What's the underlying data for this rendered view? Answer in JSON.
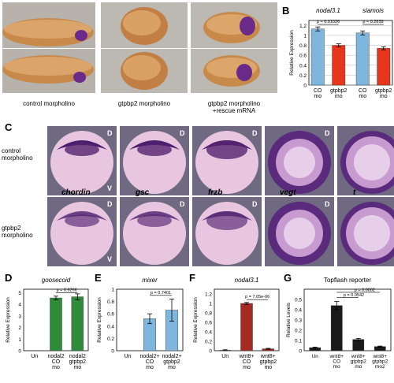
{
  "panels": {
    "A": "A",
    "B": "B",
    "C": "C",
    "D": "D",
    "E": "E",
    "F": "F",
    "G": "G"
  },
  "panelA": {
    "captions": [
      "control morpholino",
      "gtpbp2 morpholino",
      "gtpbp2 morpholino\n+rescue mRNA"
    ]
  },
  "panelC": {
    "row_labels": [
      "control\nmorpholino",
      "gtpbp2\nmorpholino"
    ],
    "gene_labels": [
      "chordin",
      "gsc",
      "frzb",
      "vegt",
      "t"
    ],
    "orientation": {
      "dorsal": "D",
      "ventral": "V"
    }
  },
  "chart_data": [
    {
      "id": "B",
      "type": "bar",
      "group_titles": [
        "nodal3.1",
        "siamois"
      ],
      "ylabel": "Relative Expression",
      "ylim": [
        0,
        1.3
      ],
      "ticks": [
        "0",
        "0.2",
        "0.4",
        "0.6",
        "0.8",
        "1",
        "1.2"
      ],
      "tick_values": [
        0,
        0.2,
        0.4,
        0.6,
        0.8,
        1,
        1.2
      ],
      "categories": [
        "CO\nmo",
        "gtpbp2\nmo",
        "CO\nmo",
        "gtpbp2\nmo"
      ],
      "values": [
        1.13,
        0.8,
        1.05,
        0.74
      ],
      "errors": [
        0.04,
        0.03,
        0.04,
        0.03
      ],
      "colors": [
        "#7fb6de",
        "#e8361c",
        "#7fb6de",
        "#e8361c"
      ],
      "pvalues": [
        "p = 0.01026",
        "p = 0.2639"
      ]
    },
    {
      "id": "D",
      "type": "bar",
      "title": "goosecoid",
      "ylabel": "Relative Expression",
      "ylim": [
        0,
        5.3
      ],
      "ticks": [
        "0",
        "1",
        "2",
        "3",
        "4",
        "5"
      ],
      "tick_values": [
        0,
        1,
        2,
        3,
        4,
        5
      ],
      "categories": [
        "Un",
        "nodal2\nCO\nmo",
        "nodal2\ngtpbp2\nmo"
      ],
      "values": [
        0.02,
        4.55,
        4.65
      ],
      "errors": [
        0,
        0.15,
        0.25
      ],
      "colors": [
        "#2e8b3a",
        "#2e8b3a",
        "#2e8b3a"
      ],
      "pvalues": [
        "p = 0.6266"
      ]
    },
    {
      "id": "E",
      "type": "bar",
      "title": "mixer",
      "ylabel": "Relative Expression",
      "ylim": [
        0,
        1
      ],
      "ticks": [
        "0",
        "0.2",
        "0.4",
        "0.6",
        "0.8",
        "1"
      ],
      "tick_values": [
        0,
        0.2,
        0.4,
        0.6,
        0.8,
        1
      ],
      "categories": [
        "Un",
        "nodal2+\nCO\nmo",
        "nodal2+\ngtpbp2\nmo"
      ],
      "values": [
        0,
        0.52,
        0.66
      ],
      "errors": [
        0,
        0.08,
        0.18
      ],
      "colors": [
        "#7fb6de",
        "#7fb6de",
        "#7fb6de"
      ],
      "pvalues": [
        "p = 0.7401"
      ]
    },
    {
      "id": "F",
      "type": "bar",
      "title": "nodal3.1",
      "ylabel": "Relative Expression",
      "ylim": [
        0,
        1.3
      ],
      "ticks": [
        "0",
        "0.2",
        "0.4",
        "0.6",
        "0.8",
        "1",
        "1.2"
      ],
      "tick_values": [
        0,
        0.2,
        0.4,
        0.6,
        0.8,
        1,
        1.2
      ],
      "categories": [
        "Un",
        "wnt8+\nCO\nmo",
        "wnt8+\ngtpbp2\nmo"
      ],
      "values": [
        0.01,
        1.0,
        0.04
      ],
      "errors": [
        0.01,
        0.02,
        0.01
      ],
      "colors": [
        "#a42a22",
        "#a42a22",
        "#a42a22"
      ],
      "pvalues": [
        "p = 7.05e-06"
      ]
    },
    {
      "id": "G",
      "type": "bar",
      "title": "Topflash reporter",
      "ylabel": "Relative Levels",
      "ylim": [
        0,
        0.6
      ],
      "ticks": [
        "0",
        "0.1",
        "0.2",
        "0.3",
        "0.4",
        "0.5"
      ],
      "tick_values": [
        0,
        0.1,
        0.2,
        0.3,
        0.4,
        0.5
      ],
      "categories": [
        "Un",
        "wnt8+\nCO\nmo",
        "wnt8+\ngtpbp2\nmo",
        "wnt8+\ngtpbp2\nmo2"
      ],
      "values": [
        0.03,
        0.44,
        0.11,
        0.04
      ],
      "errors": [
        0.005,
        0.04,
        0.01,
        0.005
      ],
      "colors": [
        "#1a1a1a",
        "#1a1a1a",
        "#1a1a1a",
        "#1a1a1a"
      ],
      "pvalues": [
        "p = 0.0542",
        "p = 0.0002"
      ]
    }
  ]
}
